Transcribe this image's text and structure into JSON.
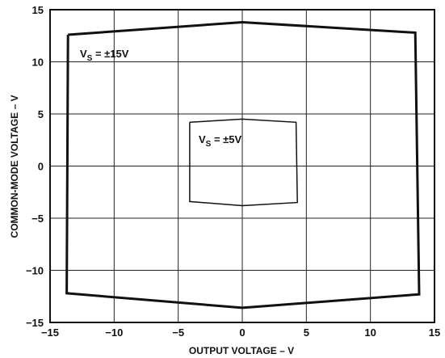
{
  "chart_data": {
    "type": "line",
    "xlabel": "OUTPUT VOLTAGE – V",
    "ylabel": "COMMON-MODE VOLTAGE – V",
    "xlim": [
      -15,
      15
    ],
    "ylim": [
      -15,
      15
    ],
    "x_ticks": [
      -15,
      -10,
      -5,
      0,
      5,
      10,
      15
    ],
    "y_ticks": [
      -15,
      -10,
      -5,
      0,
      5,
      10,
      15
    ],
    "x_tick_labels": [
      "−15",
      "−10",
      "−5",
      "0",
      "5",
      "10",
      "15"
    ],
    "y_tick_labels": [
      "−15",
      "−10",
      "−5",
      "0",
      "5",
      "10",
      "15"
    ],
    "grid": true,
    "series": [
      {
        "label": {
          "main": "V",
          "sub": "S",
          "rest": " = ±15V"
        },
        "points": [
          [
            -13.6,
            12.6
          ],
          [
            0,
            13.8
          ],
          [
            13.5,
            12.8
          ],
          [
            13.8,
            -12.3
          ],
          [
            0,
            -13.6
          ],
          [
            -13.7,
            -12.2
          ],
          [
            -13.6,
            12.6
          ]
        ],
        "stroke_width": 3
      },
      {
        "label": {
          "main": "V",
          "sub": "S",
          "rest": " = ±5V"
        },
        "points": [
          [
            -4.1,
            4.2
          ],
          [
            0,
            4.5
          ],
          [
            4.2,
            4.2
          ],
          [
            4.3,
            -3.5
          ],
          [
            0,
            -3.8
          ],
          [
            -4.1,
            -3.4
          ],
          [
            -4.1,
            4.2
          ]
        ],
        "stroke_width": 1.5
      }
    ]
  }
}
